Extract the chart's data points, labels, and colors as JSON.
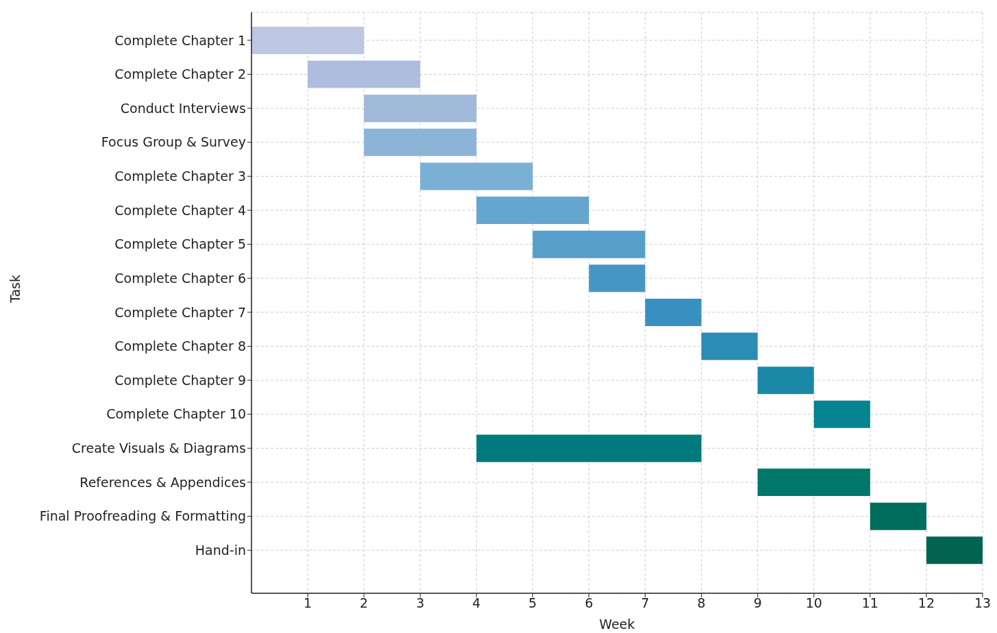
{
  "chart_data": {
    "type": "bar",
    "orientation": "horizontal",
    "xlabel": "Week",
    "ylabel": "Task",
    "categories": [
      "Complete Chapter 1",
      "Complete Chapter 2",
      "Conduct Interviews",
      "Focus Group & Survey",
      "Complete Chapter 3",
      "Complete Chapter 4",
      "Complete Chapter 5",
      "Complete Chapter 6",
      "Complete Chapter 7",
      "Complete Chapter 8",
      "Complete Chapter 9",
      "Complete Chapter 10",
      "Create Visuals & Diagrams",
      "References & Appendices",
      "Final Proofreading & Formatting",
      "Hand-in"
    ],
    "base": [
      0,
      1,
      2,
      2,
      3,
      4,
      5,
      6,
      7,
      8,
      9,
      10,
      4,
      9,
      11,
      12
    ],
    "values": [
      2,
      2,
      2,
      2,
      2,
      2,
      2,
      1,
      1,
      1,
      1,
      1,
      4,
      2,
      1,
      1
    ],
    "colors": [
      "#bdc7e2",
      "#adbddf",
      "#a0b9d9",
      "#8db4d7",
      "#79b0d4",
      "#65a6cf",
      "#559fca",
      "#4596c5",
      "#3790c0",
      "#2b8cb6",
      "#1c88a8",
      "#06848f",
      "#007a7c",
      "#00776a",
      "#006e5c",
      "#006450"
    ],
    "xlim": [
      0,
      13
    ],
    "xticks": [
      1,
      2,
      3,
      4,
      5,
      6,
      7,
      8,
      9,
      10,
      11,
      12,
      13
    ],
    "grid": true,
    "legend": false
  }
}
